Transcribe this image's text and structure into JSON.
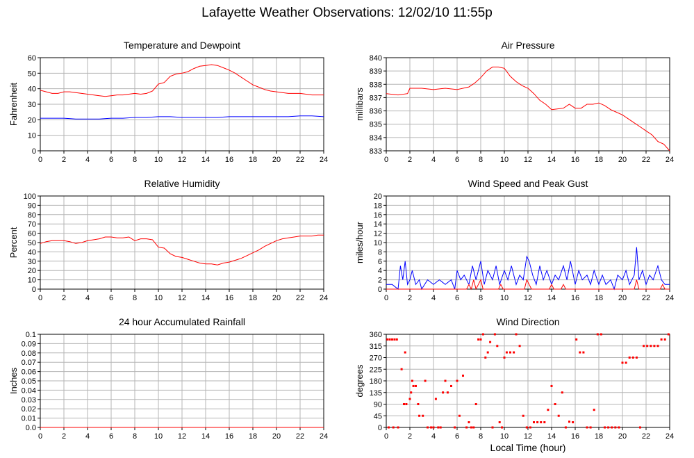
{
  "page": {
    "title": "Lafayette Weather Observations: 12/02/10 11:55p"
  },
  "colors": {
    "series1": "#ff0000",
    "series2": "#0000ff",
    "grid": "#b4b4b4",
    "axis": "#000000"
  },
  "chart_data": [
    {
      "id": "temp",
      "type": "line",
      "title": "Temperature and Dewpoint",
      "xlabel": "",
      "ylabel": "Fahrenheit",
      "xlim": [
        0,
        24
      ],
      "ylim": [
        0,
        60
      ],
      "xticks": [
        0,
        2,
        4,
        6,
        8,
        10,
        12,
        14,
        16,
        18,
        20,
        22,
        24
      ],
      "yticks": [
        0,
        10,
        20,
        30,
        40,
        50,
        60
      ],
      "grid": true,
      "series": [
        {
          "color": "#ff0000",
          "x": [
            0,
            0.5,
            1,
            1.5,
            2,
            2.5,
            3,
            3.5,
            4,
            4.5,
            5,
            5.5,
            6,
            6.5,
            7,
            7.5,
            8,
            8.5,
            9,
            9.5,
            10,
            10.5,
            11,
            11.5,
            12,
            12.5,
            13,
            13.5,
            14,
            14.5,
            15,
            15.5,
            16,
            16.5,
            17,
            17.5,
            18,
            18.5,
            19,
            19.5,
            20,
            20.5,
            21,
            21.5,
            22,
            22.5,
            23,
            23.5,
            24
          ],
          "y": [
            39,
            38,
            37,
            37,
            38,
            38,
            37.5,
            37,
            36.5,
            36,
            35.5,
            35,
            35.5,
            36,
            36,
            36.5,
            37,
            36.5,
            37,
            38.5,
            43,
            44,
            48,
            49.5,
            50,
            51,
            53,
            54.5,
            55,
            55.5,
            55,
            53.5,
            52,
            50,
            47.5,
            45,
            42.5,
            41,
            39.5,
            38.5,
            38,
            37.5,
            37,
            37,
            37,
            36.5,
            36,
            36,
            36
          ]
        },
        {
          "color": "#0000ff",
          "x": [
            0,
            1,
            2,
            3,
            4,
            5,
            6,
            7,
            8,
            9,
            10,
            11,
            12,
            13,
            14,
            15,
            16,
            17,
            18,
            19,
            20,
            21,
            22,
            23,
            24
          ],
          "y": [
            21,
            21,
            21,
            20.5,
            20.5,
            20.5,
            21,
            21,
            21.5,
            21.5,
            22,
            22,
            21.5,
            21.5,
            21.5,
            21.5,
            22,
            22,
            22,
            22,
            22,
            22,
            22.5,
            22.5,
            22
          ]
        }
      ]
    },
    {
      "id": "pressure",
      "type": "line",
      "title": "Air Pressure",
      "xlabel": "",
      "ylabel": "millibars",
      "xlim": [
        0,
        24
      ],
      "ylim": [
        833,
        840
      ],
      "xticks": [
        0,
        2,
        4,
        6,
        8,
        10,
        12,
        14,
        16,
        18,
        20,
        22,
        24
      ],
      "yticks": [
        833,
        834,
        835,
        836,
        837,
        838,
        839,
        840
      ],
      "grid": true,
      "series": [
        {
          "color": "#ff0000",
          "x": [
            0,
            1,
            1.8,
            2,
            3,
            4,
            5,
            6,
            7,
            7.5,
            8,
            8.5,
            9,
            9.5,
            10,
            10.5,
            11,
            11.5,
            12,
            12.5,
            13,
            13.5,
            14,
            15,
            15.5,
            16,
            16.5,
            17,
            17.5,
            18,
            18.5,
            19,
            19.5,
            20,
            20.5,
            21,
            21.5,
            22,
            22.5,
            23,
            23.5,
            24
          ],
          "y": [
            837.3,
            837.2,
            837.3,
            837.7,
            837.7,
            837.6,
            837.7,
            837.6,
            837.8,
            838.1,
            838.5,
            839.0,
            839.3,
            839.3,
            839.2,
            838.6,
            838.2,
            837.9,
            837.7,
            837.3,
            836.8,
            836.5,
            836.1,
            836.2,
            836.5,
            836.2,
            836.2,
            836.5,
            836.5,
            836.6,
            836.4,
            836.1,
            835.9,
            835.7,
            835.4,
            835.1,
            834.8,
            834.5,
            834.2,
            833.7,
            833.5,
            833.0
          ]
        }
      ]
    },
    {
      "id": "humidity",
      "type": "line",
      "title": "Relative Humidity",
      "xlabel": "",
      "ylabel": "Percent",
      "xlim": [
        0,
        24
      ],
      "ylim": [
        0,
        100
      ],
      "xticks": [
        0,
        2,
        4,
        6,
        8,
        10,
        12,
        14,
        16,
        18,
        20,
        22,
        24
      ],
      "yticks": [
        0,
        10,
        20,
        30,
        40,
        50,
        60,
        70,
        80,
        90,
        100
      ],
      "grid": true,
      "series": [
        {
          "color": "#ff0000",
          "x": [
            0,
            0.5,
            1,
            1.5,
            2,
            2.5,
            3,
            3.5,
            4,
            4.5,
            5,
            5.5,
            6,
            6.5,
            7,
            7.5,
            8,
            8.5,
            9,
            9.5,
            10,
            10.5,
            11,
            11.5,
            12,
            12.5,
            13,
            13.5,
            14,
            14.5,
            15,
            15.5,
            16,
            16.5,
            17,
            17.5,
            18,
            18.5,
            19,
            19.5,
            20,
            20.5,
            21,
            21.5,
            22,
            22.5,
            23,
            23.5,
            24
          ],
          "y": [
            49,
            51,
            52,
            52,
            52,
            51,
            49,
            50,
            52,
            53,
            54,
            56,
            56,
            55,
            55,
            56,
            52,
            54,
            54,
            53,
            45,
            44,
            38,
            35,
            34,
            32,
            30,
            28,
            27,
            27,
            26,
            28,
            29,
            31,
            33,
            36,
            39,
            42,
            46,
            49,
            52,
            54,
            55,
            56,
            57,
            57,
            57,
            58,
            58
          ]
        }
      ]
    },
    {
      "id": "wind",
      "type": "line",
      "title": "Wind Speed and Peak Gust",
      "xlabel": "",
      "ylabel": "miles/hour",
      "xlim": [
        0,
        24
      ],
      "ylim": [
        0,
        20
      ],
      "xticks": [
        0,
        2,
        4,
        6,
        8,
        10,
        12,
        14,
        16,
        18,
        20,
        22,
        24
      ],
      "yticks": [
        0,
        2,
        4,
        6,
        8,
        10,
        12,
        14,
        16,
        18,
        20
      ],
      "grid": true,
      "series": [
        {
          "color": "#0000ff",
          "x": [
            0,
            0.5,
            1,
            1.2,
            1.4,
            1.6,
            1.8,
            2,
            2.2,
            2.5,
            2.8,
            3,
            3.5,
            4,
            4.5,
            5,
            5.5,
            5.8,
            6,
            6.3,
            6.6,
            7,
            7.3,
            7.6,
            8,
            8.3,
            8.6,
            9,
            9.3,
            9.6,
            10,
            10.3,
            10.6,
            11,
            11.3,
            11.6,
            11.9,
            12.1,
            12.4,
            12.7,
            13,
            13.3,
            13.6,
            14,
            14.3,
            14.6,
            15,
            15.3,
            15.6,
            16,
            16.3,
            16.6,
            17,
            17.3,
            17.6,
            18,
            18.3,
            18.6,
            19,
            19.3,
            19.6,
            20,
            20.3,
            20.6,
            21,
            21.2,
            21.4,
            21.7,
            22,
            22.3,
            22.6,
            23,
            23.3,
            23.6,
            24
          ],
          "y": [
            1,
            1,
            0,
            5,
            2,
            6,
            1,
            2,
            4,
            1,
            2,
            0,
            2,
            1,
            2,
            1,
            2,
            0,
            4,
            2,
            3,
            1,
            5,
            2,
            6,
            1,
            4,
            2,
            5,
            1,
            4,
            2,
            5,
            1,
            3,
            2,
            7,
            6,
            3,
            1,
            5,
            2,
            4,
            1,
            3,
            2,
            5,
            2,
            6,
            1,
            4,
            2,
            3,
            1,
            4,
            1,
            3,
            1,
            2,
            0,
            3,
            2,
            4,
            1,
            3,
            9,
            2,
            4,
            1,
            3,
            2,
            5,
            2,
            1,
            1
          ]
        },
        {
          "color": "#ff0000",
          "x": [
            0,
            6.8,
            7,
            7.2,
            7.4,
            7.6,
            7.8,
            8,
            8.2,
            8.4,
            9.5,
            9.7,
            9.9,
            11.7,
            11.9,
            12.1,
            12.3,
            13.8,
            14,
            14.2,
            14.8,
            15,
            15.2,
            21,
            21.2,
            21.4,
            23.2,
            23.4,
            23.6,
            24
          ],
          "y": [
            0,
            0,
            1,
            0,
            2,
            0,
            1,
            2,
            0,
            0,
            0,
            1,
            0,
            0,
            2,
            1,
            0,
            0,
            1,
            0,
            0,
            1,
            0,
            0,
            2,
            0,
            0,
            1,
            0,
            0
          ]
        }
      ]
    },
    {
      "id": "rain",
      "type": "line",
      "title": "24 hour Accumulated Rainfall",
      "xlabel": "",
      "ylabel": "Inches",
      "xlim": [
        0,
        24
      ],
      "ylim": [
        0,
        0.1
      ],
      "xticks": [
        0,
        2,
        4,
        6,
        8,
        10,
        12,
        14,
        16,
        18,
        20,
        22,
        24
      ],
      "yticks": [
        "0.0",
        "0.01",
        "0.02",
        "0.03",
        "0.04",
        "0.05",
        "0.06",
        "0.07",
        "0.08",
        "0.09",
        "0.1"
      ],
      "grid": true,
      "series": [
        {
          "color": "#ff0000",
          "x": [
            0,
            24
          ],
          "y": [
            0,
            0
          ]
        }
      ]
    },
    {
      "id": "direction",
      "type": "scatter",
      "title": "Wind Direction",
      "xlabel": "Local Time (hour)",
      "ylabel": "degrees",
      "xlim": [
        0,
        24
      ],
      "ylim": [
        0,
        360
      ],
      "xticks": [
        0,
        2,
        4,
        6,
        8,
        10,
        12,
        14,
        16,
        18,
        20,
        22,
        24
      ],
      "yticks": [
        0,
        45,
        90,
        135,
        180,
        225,
        270,
        315,
        360
      ],
      "grid": true,
      "series": [
        {
          "color": "#ff0000",
          "x": [
            0.1,
            0.3,
            0.5,
            0.7,
            0.9,
            0.2,
            0.6,
            1.0,
            1.3,
            1.6,
            1.5,
            1.7,
            2.0,
            2.1,
            2.3,
            2.5,
            2.2,
            2.7,
            2.8,
            3.1,
            3.3,
            3.5,
            3.8,
            4.0,
            4.2,
            4.4,
            4.6,
            4.8,
            5.0,
            5.2,
            5.5,
            5.8,
            6.0,
            6.2,
            6.5,
            6.8,
            7.0,
            7.2,
            7.4,
            7.6,
            7.8,
            8.0,
            8.2,
            8.4,
            8.6,
            8.8,
            9.0,
            9.2,
            9.4,
            9.6,
            9.8,
            10.0,
            10.2,
            10.5,
            10.8,
            11.0,
            11.3,
            11.6,
            11.9,
            12.2,
            12.5,
            12.8,
            13.1,
            13.4,
            13.7,
            14.0,
            14.3,
            14.6,
            14.9,
            15.2,
            15.5,
            15.8,
            16.1,
            16.4,
            16.7,
            17.0,
            17.3,
            17.6,
            17.9,
            18.2,
            18.5,
            18.8,
            19.1,
            19.4,
            19.7,
            20.0,
            20.3,
            20.6,
            20.9,
            21.2,
            21.5,
            21.8,
            22.1,
            22.4,
            22.7,
            23.0,
            23.3,
            23.6,
            23.9
          ],
          "y": [
            340,
            340,
            340,
            340,
            340,
            0,
            0,
            0,
            225,
            290,
            90,
            90,
            110,
            135,
            160,
            160,
            180,
            90,
            45,
            45,
            180,
            0,
            0,
            0,
            110,
            0,
            0,
            135,
            180,
            135,
            160,
            0,
            180,
            45,
            200,
            0,
            20,
            0,
            0,
            90,
            340,
            340,
            360,
            270,
            290,
            330,
            0,
            360,
            315,
            20,
            0,
            270,
            290,
            290,
            290,
            360,
            315,
            45,
            0,
            0,
            20,
            20,
            20,
            20,
            68,
            160,
            90,
            45,
            135,
            0,
            22,
            20,
            340,
            290,
            290,
            0,
            0,
            68,
            360,
            360,
            0,
            0,
            0,
            0,
            0,
            250,
            250,
            270,
            270,
            270,
            0,
            315,
            315,
            315,
            315,
            315,
            340,
            340,
            360
          ]
        }
      ]
    }
  ]
}
